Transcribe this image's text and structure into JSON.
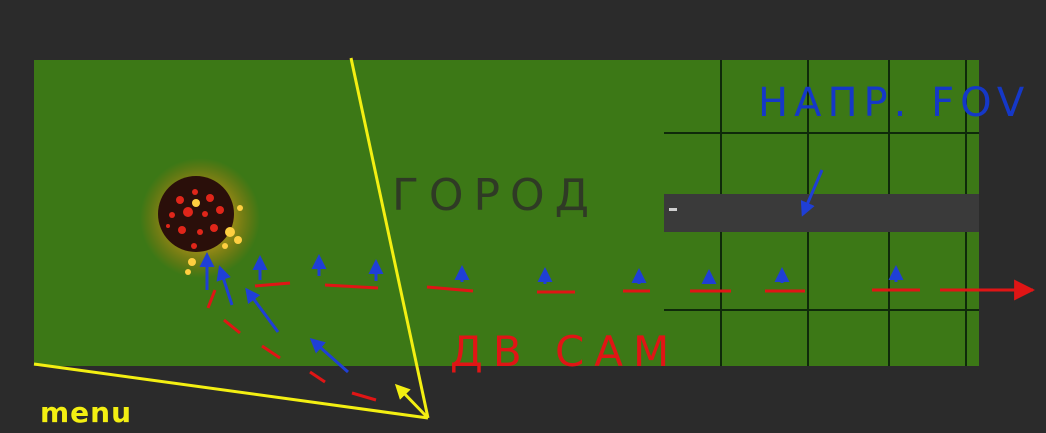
{
  "annotations": {
    "city_label": "ГОРОД",
    "fov_label": "НАПР. FOV",
    "cam_label": "ДВ САМ",
    "menu_label": "menu"
  },
  "colors": {
    "background": "#2b2b2b",
    "field": "#3f7d17",
    "grid": "#0f2a0a",
    "road": "#3a3a3a",
    "camera_path": "#e01515",
    "fov_arrows": "#1f3fd6",
    "menu_lines": "#f3ef12",
    "meteor_core": "#2a0f0a",
    "meteor_glow": "#ffd040"
  },
  "icons": {
    "meteor": "burning-meteor-icon",
    "path_arrow": "arrow-right-icon",
    "fov_arrow": "arrow-up-icon"
  }
}
